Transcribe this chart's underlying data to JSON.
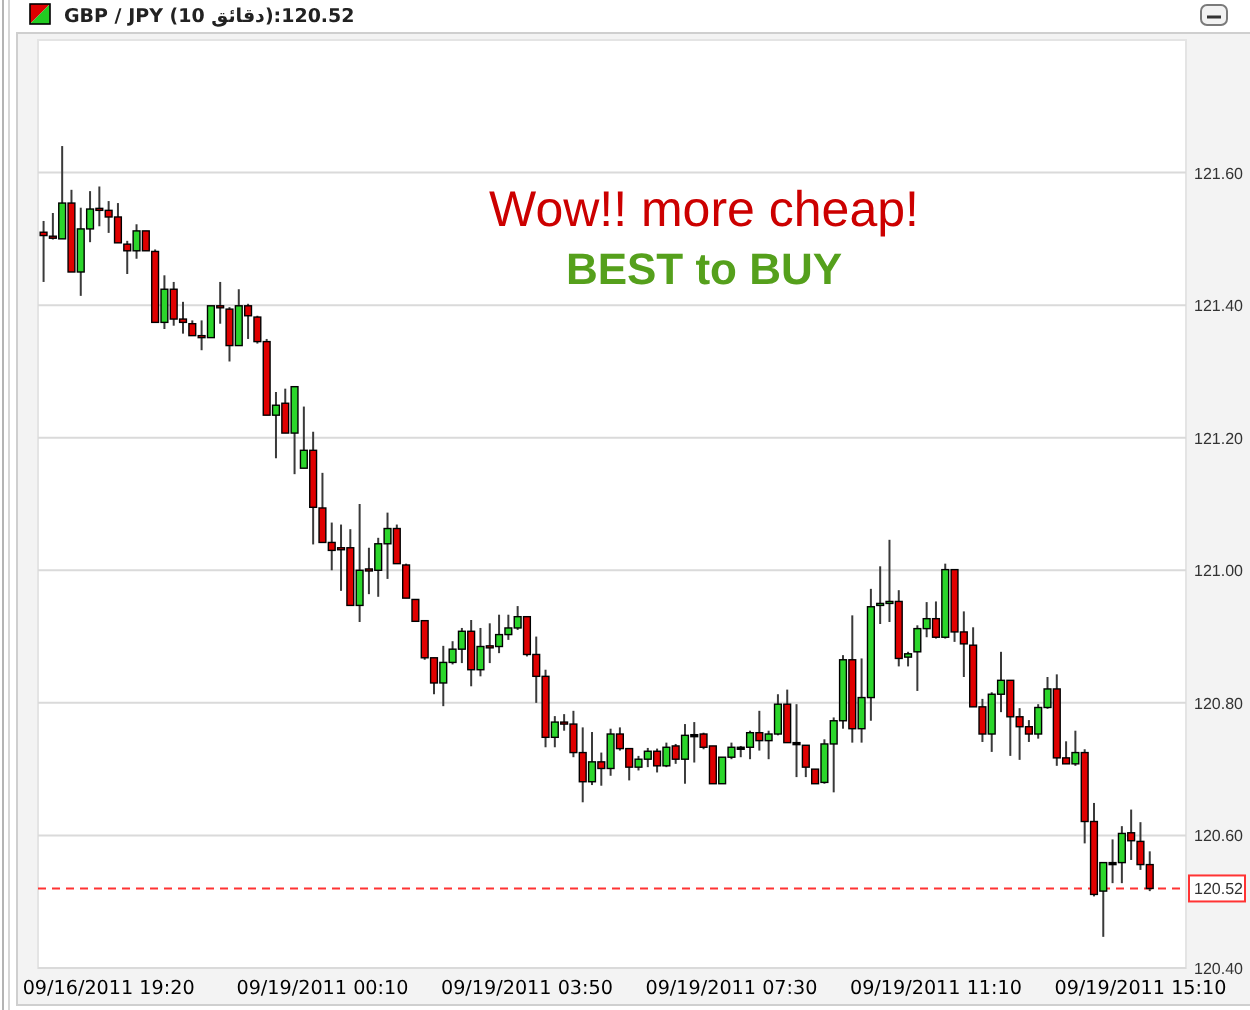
{
  "chart_data": {
    "type": "candlestick",
    "title": "GBP / JPY (10 دقائق):120.52",
    "categories": [
      null,
      null,
      null,
      null,
      null,
      null,
      null,
      "09/16/2011 19:20",
      null,
      null,
      null,
      null,
      null,
      null,
      null,
      null,
      null,
      null,
      null,
      null,
      null,
      null,
      null,
      null,
      null,
      null,
      null,
      null,
      null,
      null,
      "09/19/2011 00:10",
      null,
      null,
      null,
      null,
      null,
      null,
      null,
      null,
      null,
      null,
      null,
      null,
      null,
      null,
      null,
      null,
      null,
      null,
      null,
      null,
      null,
      "09/19/2011 03:50",
      null,
      null,
      null,
      null,
      null,
      null,
      null,
      null,
      null,
      null,
      null,
      null,
      null,
      null,
      null,
      null,
      null,
      null,
      null,
      null,
      null,
      "09/19/2011 07:30",
      null,
      null,
      null,
      null,
      null,
      null,
      null,
      null,
      null,
      null,
      null,
      null,
      null,
      null,
      null,
      null,
      null,
      null,
      null,
      null,
      null,
      "09/19/2011 11:10",
      null,
      null,
      null,
      null,
      null,
      null,
      null,
      null,
      null,
      null,
      null,
      null,
      null,
      null,
      null,
      null,
      null,
      null,
      null,
      null,
      null,
      "09/19/2011 15:10",
      null
    ],
    "ohlc": [
      [
        121.51,
        121.527,
        121.435,
        121.505
      ],
      [
        121.504,
        121.539,
        121.499,
        121.503
      ],
      [
        121.5,
        121.64,
        121.5,
        121.554
      ],
      [
        121.554,
        121.574,
        121.45,
        121.45
      ],
      [
        121.45,
        121.547,
        121.414,
        121.515
      ],
      [
        121.515,
        121.572,
        121.495,
        121.545
      ],
      [
        121.546,
        121.579,
        121.519,
        121.544
      ],
      [
        121.543,
        121.557,
        121.509,
        121.533
      ],
      [
        121.533,
        121.554,
        121.494,
        121.494
      ],
      [
        121.492,
        121.497,
        121.447,
        121.482
      ],
      [
        121.482,
        121.522,
        121.47,
        121.512
      ],
      [
        121.512,
        121.512,
        121.482,
        121.482
      ],
      [
        121.481,
        121.484,
        121.374,
        121.374
      ],
      [
        121.374,
        121.445,
        121.364,
        121.424
      ],
      [
        121.424,
        121.435,
        121.369,
        121.379
      ],
      [
        121.379,
        121.405,
        121.357,
        121.374
      ],
      [
        121.372,
        121.377,
        121.354,
        121.354
      ],
      [
        121.354,
        121.377,
        121.332,
        121.351
      ],
      [
        121.351,
        121.399,
        121.351,
        121.399
      ],
      [
        121.399,
        121.435,
        121.372,
        121.398
      ],
      [
        121.394,
        121.397,
        121.315,
        121.339
      ],
      [
        121.339,
        121.424,
        121.339,
        121.399
      ],
      [
        121.399,
        121.402,
        121.349,
        121.384
      ],
      [
        121.382,
        121.384,
        121.342,
        121.345
      ],
      [
        121.345,
        121.349,
        121.234,
        121.234
      ],
      [
        121.234,
        121.269,
        121.169,
        121.249
      ],
      [
        121.252,
        121.274,
        121.207,
        121.207
      ],
      [
        121.207,
        121.277,
        121.145,
        121.277
      ],
      [
        121.154,
        121.247,
        121.154,
        121.181
      ],
      [
        121.181,
        121.209,
        121.039,
        121.095
      ],
      [
        121.094,
        121.147,
        121.042,
        121.042
      ],
      [
        121.042,
        121.072,
        121.0,
        121.03
      ],
      [
        121.034,
        121.069,
        120.969,
        121.033
      ],
      [
        121.034,
        121.062,
        120.947,
        120.947
      ],
      [
        120.947,
        121.1,
        120.922,
        121.0
      ],
      [
        121.002,
        121.034,
        120.964,
        121.001
      ],
      [
        121.0,
        121.049,
        120.96,
        121.04
      ],
      [
        121.04,
        121.087,
        120.987,
        121.063
      ],
      [
        121.063,
        121.069,
        121.01,
        121.01
      ],
      [
        121.008,
        121.01,
        120.958,
        120.958
      ],
      [
        120.956,
        120.956,
        120.923,
        120.923
      ],
      [
        120.924,
        120.924,
        120.865,
        120.868
      ],
      [
        120.868,
        120.868,
        120.813,
        120.83
      ],
      [
        120.83,
        120.886,
        120.795,
        120.861
      ],
      [
        120.861,
        120.893,
        120.858,
        120.881
      ],
      [
        120.881,
        120.913,
        120.86,
        120.908
      ],
      [
        120.908,
        120.925,
        120.825,
        120.85
      ],
      [
        120.85,
        120.913,
        120.84,
        120.885
      ],
      [
        120.886,
        120.92,
        120.86,
        120.884
      ],
      [
        120.885,
        120.933,
        120.875,
        120.903
      ],
      [
        120.903,
        120.933,
        120.895,
        120.913
      ],
      [
        120.913,
        120.946,
        120.91,
        120.93
      ],
      [
        120.93,
        120.93,
        120.87,
        120.873
      ],
      [
        120.873,
        120.9,
        120.8,
        120.84
      ],
      [
        120.84,
        120.85,
        120.733,
        120.748
      ],
      [
        120.748,
        120.78,
        120.733,
        120.771
      ],
      [
        120.771,
        120.783,
        120.758,
        120.77
      ],
      [
        120.768,
        120.788,
        120.718,
        120.725
      ],
      [
        120.725,
        120.763,
        120.65,
        120.681
      ],
      [
        120.681,
        120.756,
        120.676,
        120.711
      ],
      [
        120.711,
        120.725,
        120.675,
        120.701
      ],
      [
        120.701,
        120.761,
        120.69,
        120.753
      ],
      [
        120.753,
        120.763,
        120.728,
        120.731
      ],
      [
        120.731,
        120.731,
        120.683,
        120.703
      ],
      [
        120.703,
        120.72,
        120.698,
        120.715
      ],
      [
        120.715,
        120.732,
        120.703,
        120.727
      ],
      [
        120.727,
        120.731,
        120.695,
        120.705
      ],
      [
        120.705,
        120.74,
        120.703,
        120.733
      ],
      [
        120.735,
        120.738,
        120.708,
        120.715
      ],
      [
        120.715,
        120.768,
        120.678,
        120.751
      ],
      [
        120.752,
        120.771,
        120.71,
        120.752
      ],
      [
        120.753,
        120.755,
        120.73,
        120.733
      ],
      [
        120.735,
        120.735,
        120.678,
        120.678
      ],
      [
        120.678,
        120.718,
        120.678,
        120.718
      ],
      [
        120.718,
        120.74,
        120.715,
        120.733
      ],
      [
        120.733,
        120.735,
        120.718,
        120.733
      ],
      [
        120.733,
        120.758,
        120.715,
        120.755
      ],
      [
        120.755,
        120.788,
        120.728,
        120.743
      ],
      [
        120.743,
        120.758,
        120.715,
        120.753
      ],
      [
        120.753,
        120.813,
        120.751,
        120.798
      ],
      [
        120.798,
        120.82,
        120.74,
        120.74
      ],
      [
        120.74,
        120.798,
        120.688,
        120.74
      ],
      [
        120.736,
        120.736,
        120.688,
        120.703
      ],
      [
        120.7,
        120.7,
        120.678,
        120.678
      ],
      [
        120.68,
        120.745,
        120.678,
        120.738
      ],
      [
        120.738,
        120.778,
        120.665,
        120.773
      ],
      [
        120.773,
        120.872,
        120.761,
        120.865
      ],
      [
        120.865,
        120.932,
        120.74,
        120.761
      ],
      [
        120.761,
        120.867,
        120.74,
        120.808
      ],
      [
        120.808,
        120.972,
        120.773,
        120.945
      ],
      [
        120.948,
        121.006,
        120.919,
        120.95
      ],
      [
        120.95,
        121.046,
        120.922,
        120.953
      ],
      [
        120.953,
        120.97,
        120.855,
        120.867
      ],
      [
        120.869,
        120.877,
        120.855,
        120.874
      ],
      [
        120.877,
        120.917,
        120.818,
        120.912
      ],
      [
        120.912,
        120.952,
        120.899,
        120.927
      ],
      [
        120.927,
        120.953,
        120.897,
        120.899
      ],
      [
        120.899,
        121.01,
        120.897,
        121.001
      ],
      [
        121.001,
        121.001,
        120.892,
        120.907
      ],
      [
        120.907,
        120.938,
        120.839,
        120.889
      ],
      [
        120.887,
        120.914,
        120.794,
        120.794
      ],
      [
        120.794,
        120.806,
        120.741,
        120.753
      ],
      [
        120.753,
        120.816,
        120.726,
        120.813
      ],
      [
        120.813,
        120.877,
        120.786,
        120.834
      ],
      [
        120.834,
        120.834,
        120.72,
        120.779
      ],
      [
        120.779,
        120.792,
        120.714,
        120.764
      ],
      [
        120.764,
        120.774,
        120.741,
        120.753
      ],
      [
        120.753,
        120.798,
        120.746,
        120.793
      ],
      [
        120.793,
        120.839,
        120.791,
        120.821
      ],
      [
        120.821,
        120.843,
        120.705,
        120.717
      ],
      [
        120.717,
        120.742,
        120.708,
        120.708
      ],
      [
        120.708,
        120.758,
        120.705,
        120.725
      ],
      [
        120.725,
        120.73,
        120.588,
        120.621
      ],
      [
        120.621,
        120.649,
        120.508,
        120.511
      ],
      [
        120.516,
        120.559,
        120.447,
        120.559
      ],
      [
        120.559,
        120.594,
        120.528,
        120.559
      ],
      [
        120.559,
        120.614,
        120.528,
        120.603
      ],
      [
        120.604,
        120.639,
        120.563,
        120.592
      ],
      [
        120.591,
        120.62,
        120.548,
        120.556
      ],
      [
        120.556,
        120.576,
        120.516,
        120.52
      ]
    ],
    "ylim": [
      120.4,
      121.8
    ],
    "yticks": [
      {
        "value": 120.4,
        "label": "120.40"
      },
      {
        "value": 120.6,
        "label": "120.60"
      },
      {
        "value": 120.8,
        "label": "120.80"
      },
      {
        "value": 121.0,
        "label": "121.00"
      },
      {
        "value": 121.2,
        "label": "121.20"
      },
      {
        "value": 121.4,
        "label": "121.40"
      },
      {
        "value": 121.6,
        "label": "121.60"
      }
    ],
    "grid": "y",
    "ref_lines": [
      {
        "axis": "y",
        "value": 120.52,
        "label": "120.52",
        "color": "#ff3333",
        "line_style": "dashed"
      }
    ],
    "annotations": [
      "Wow!! more cheap!",
      "BEST to BUY"
    ]
  }
}
